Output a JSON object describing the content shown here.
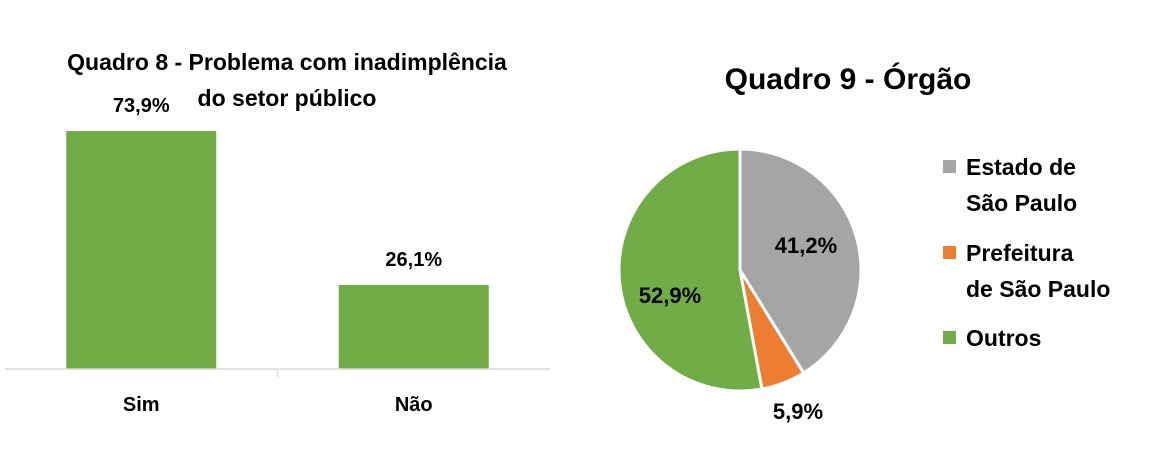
{
  "chart_data": [
    {
      "type": "bar",
      "title_lines": [
        "Quadro 8 - Problema com inadimplência",
        "do setor público"
      ],
      "categories": [
        "Sim",
        "Não"
      ],
      "values": [
        73.9,
        26.1
      ],
      "value_labels": [
        "73,9%",
        "26,1%"
      ],
      "xlabel": "",
      "ylabel": "",
      "ylim": [
        0,
        100
      ],
      "grid": false,
      "legend": "none",
      "colors": [
        "#70ad47"
      ]
    },
    {
      "type": "pie",
      "title": "Quadro 9 - Órgão",
      "labels": [
        "Estado de São Paulo",
        "Prefeitura de São Paulo",
        "Outros"
      ],
      "legend_lines": [
        [
          "Estado de",
          "São Paulo"
        ],
        [
          "Prefeitura",
          "de São Paulo"
        ],
        [
          "Outros"
        ]
      ],
      "values": [
        41.2,
        5.9,
        52.9
      ],
      "value_labels": [
        "41,2%",
        "5,9%",
        "52,9%"
      ],
      "colors": [
        "#a5a5a5",
        "#ed7d31",
        "#70ad47"
      ],
      "legend": "right"
    }
  ]
}
